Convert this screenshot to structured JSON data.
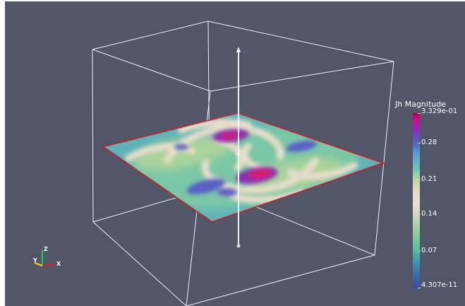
{
  "colorbar": {
    "title": "Jh Magnitude",
    "max_label": "3.329e-01",
    "min_label": "4.307e-11",
    "tick_labels": [
      "0.28",
      "0.21",
      "0.14",
      "0.07"
    ],
    "colors": [
      "#b20055",
      "#9c23b8",
      "#4d6fc3",
      "#72c4b8",
      "#e4dcc2",
      "#86cc98",
      "#3d97a9",
      "#3a4d9d"
    ]
  },
  "axes_triad": {
    "x_label": "X",
    "y_label": "Y",
    "z_label": "Z",
    "x_color": "#d2202f",
    "y_color": "#f2dd00",
    "z_color": "#21c94a"
  },
  "scene": {
    "background_color": "#525669",
    "outline_color": "#f2f2f2",
    "slice_outline_color": "#cc1f2a",
    "arrow_color": "#f2f2f2"
  }
}
